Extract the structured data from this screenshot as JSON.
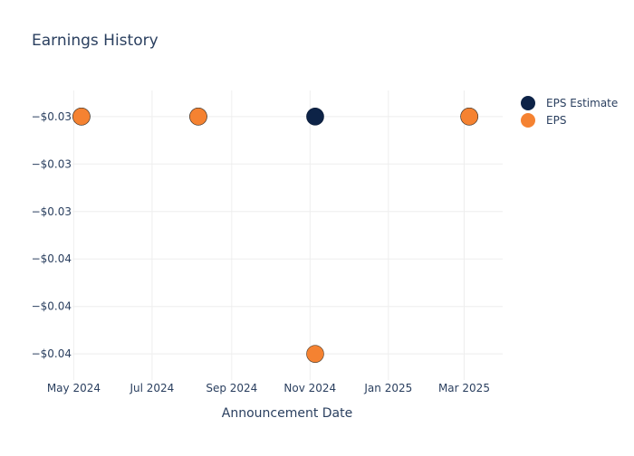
{
  "chart_data": {
    "type": "scatter",
    "title": "Earnings History",
    "xlabel": "Announcement Date",
    "ylabel": "",
    "x_ticks": [
      "2024-05-01",
      "2024-07-01",
      "2024-09-01",
      "2024-11-01",
      "2025-01-01",
      "2025-03-01"
    ],
    "x_tick_labels": [
      "May 2024",
      "Jul 2024",
      "Sep 2024",
      "Nov 2024",
      "Jan 2025",
      "Mar 2025"
    ],
    "xlim": [
      "2024-04-30",
      "2025-03-31"
    ],
    "y_ticks": [
      -0.03,
      -0.032,
      -0.034,
      -0.036,
      -0.038,
      -0.04
    ],
    "y_tick_labels": [
      "−$0.03",
      "−$0.03",
      "−$0.03",
      "−$0.04",
      "−$0.04",
      "−$0.04"
    ],
    "ylim": [
      -0.0411,
      -0.0289
    ],
    "grid": true,
    "legend_position": "top-right",
    "series": [
      {
        "name": "EPS Estimate",
        "color": "#0d2347",
        "points": [
          {
            "x": "2024-05-07",
            "y": -0.03
          },
          {
            "x": "2024-08-06",
            "y": -0.03
          },
          {
            "x": "2024-11-05",
            "y": -0.03
          },
          {
            "x": "2025-03-05",
            "y": -0.03
          }
        ]
      },
      {
        "name": "EPS",
        "color": "#f58231",
        "points": [
          {
            "x": "2024-05-07",
            "y": -0.03
          },
          {
            "x": "2024-08-06",
            "y": -0.03
          },
          {
            "x": "2024-11-05",
            "y": -0.04
          },
          {
            "x": "2025-03-05",
            "y": -0.03
          }
        ]
      }
    ]
  }
}
